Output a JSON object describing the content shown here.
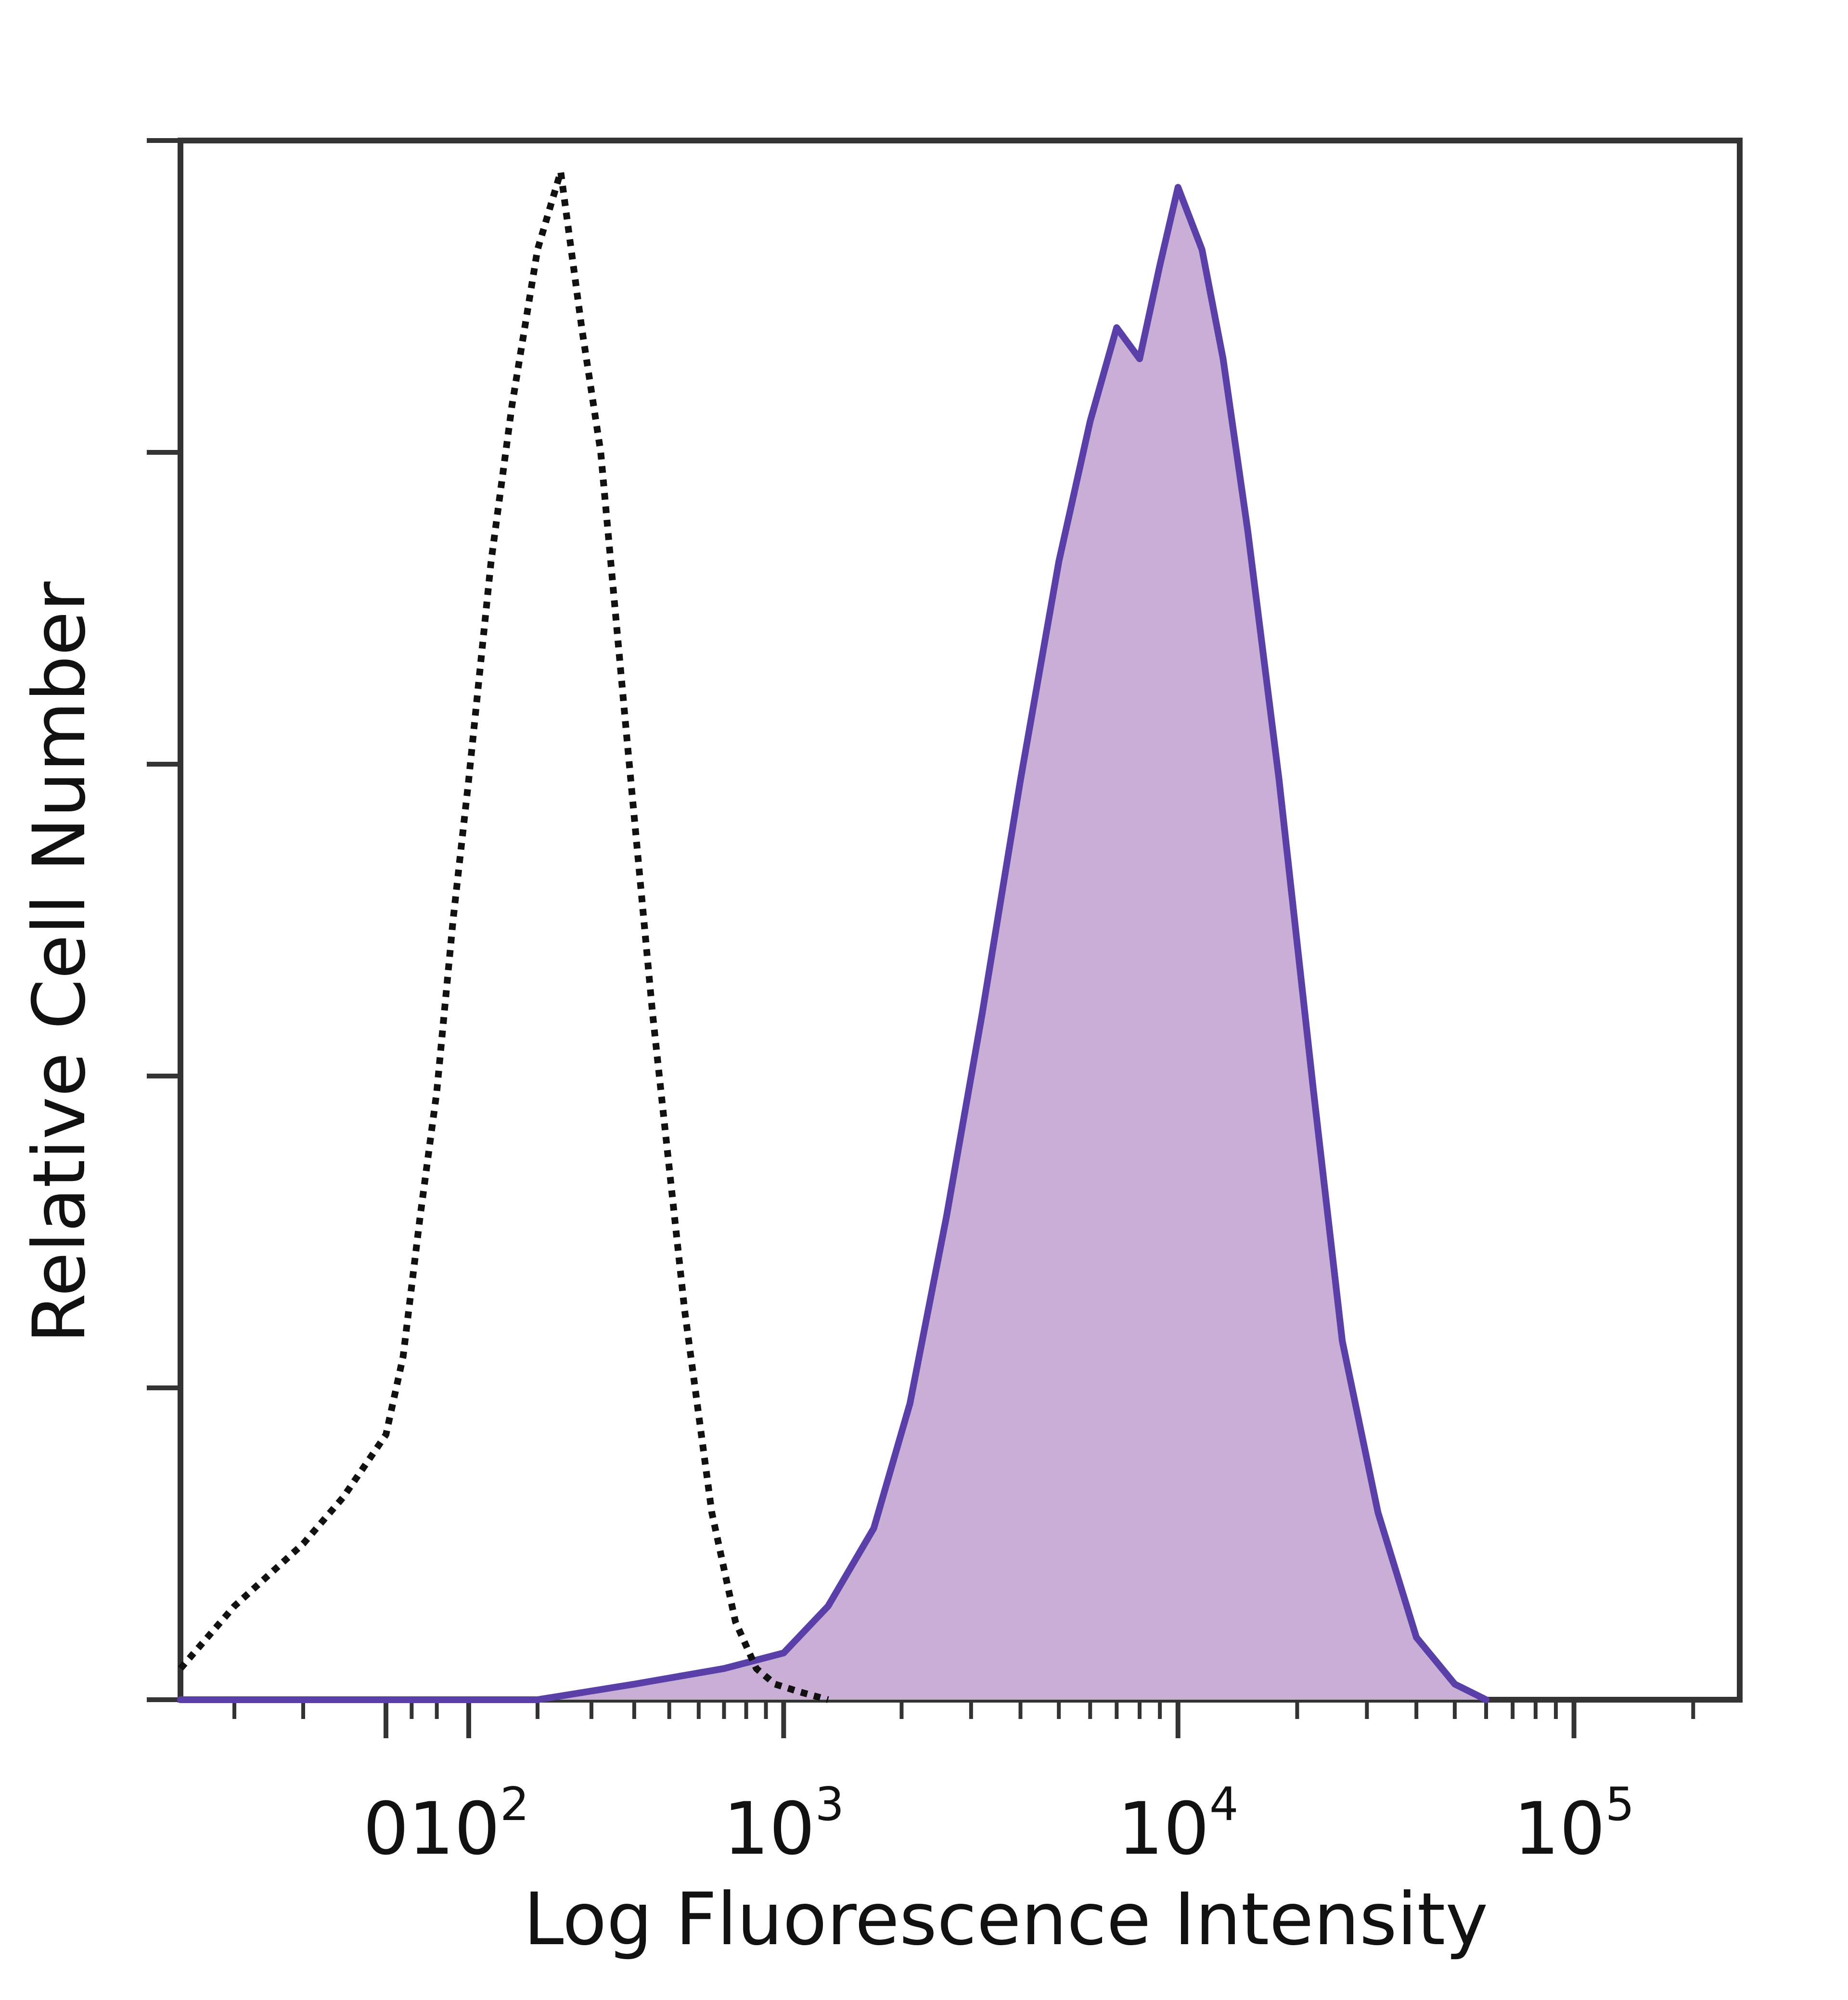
{
  "chart_data": {
    "type": "area",
    "xlabel": "Log Fluorescence Intensity",
    "ylabel": "Relative Cell Number",
    "x_scale": "biexponential",
    "x_tick_labels": [
      {
        "value": 0,
        "label": "0",
        "base": "0",
        "exp": ""
      },
      {
        "value": 100,
        "label": "10^2",
        "base": "10",
        "exp": "2"
      },
      {
        "value": 1000,
        "label": "10^3",
        "base": "10",
        "exp": "3"
      },
      {
        "value": 10000,
        "label": "10^4",
        "base": "10",
        "exp": "4"
      },
      {
        "value": 100000,
        "label": "10^5",
        "base": "10",
        "exp": "5"
      }
    ],
    "xlim": [
      -300,
      262144
    ],
    "ylim": [
      0,
      100
    ],
    "grid": false,
    "series": [
      {
        "style": "dotted-line",
        "color": "#111111",
        "filled": false,
        "x": [
          -300,
          -200,
          -100,
          -50,
          0,
          20,
          40,
          60,
          80,
          100,
          130,
          160,
          200,
          240,
          280,
          320,
          380,
          450,
          550,
          650,
          750,
          850,
          950,
          1100,
          1300
        ],
        "y": [
          2,
          6,
          10,
          13,
          17,
          22,
          31,
          39,
          50,
          59,
          73,
          83,
          93,
          98,
          88,
          80,
          62,
          44,
          25,
          12,
          5,
          2,
          1,
          0.5,
          0
        ]
      },
      {
        "style": "filled",
        "color": "#5b3fa8",
        "fill": "#c9afd6",
        "filled": true,
        "x": [
          -300,
          200,
          400,
          700,
          1000,
          1300,
          1700,
          2100,
          2600,
          3200,
          4000,
          5000,
          6000,
          7000,
          8000,
          9000,
          10000,
          11500,
          13000,
          15000,
          18000,
          22000,
          26000,
          32000,
          40000,
          50000,
          60000
        ],
        "y": [
          0,
          0,
          1,
          2,
          3,
          6,
          11,
          19,
          31,
          44,
          59,
          73,
          82,
          88,
          86,
          92,
          97,
          93,
          86,
          75,
          59,
          39,
          23,
          12,
          4,
          1,
          0
        ]
      }
    ]
  }
}
